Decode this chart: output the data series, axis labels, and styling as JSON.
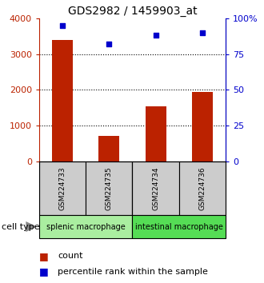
{
  "title": "GDS2982 / 1459903_at",
  "samples": [
    "GSM224733",
    "GSM224735",
    "GSM224734",
    "GSM224736"
  ],
  "counts": [
    3400,
    700,
    1550,
    1950
  ],
  "percentiles": [
    95,
    82,
    88,
    90
  ],
  "bar_color": "#BB2200",
  "dot_color": "#0000CC",
  "left_ylim": [
    0,
    4000
  ],
  "right_ylim": [
    0,
    100
  ],
  "left_yticks": [
    0,
    1000,
    2000,
    3000,
    4000
  ],
  "right_yticks": [
    0,
    25,
    50,
    75,
    100
  ],
  "right_yticklabels": [
    "0",
    "25",
    "50",
    "75",
    "100%"
  ],
  "grid_values": [
    1000,
    2000,
    3000
  ],
  "sample_box_color": "#CCCCCC",
  "group1_color": "#AAEEA0",
  "group2_color": "#55DD55",
  "group1_label": "splenic macrophage",
  "group2_label": "intestinal macrophage",
  "legend_count_label": "count",
  "legend_pct_label": "percentile rank within the sample",
  "cell_type_label": "cell type"
}
